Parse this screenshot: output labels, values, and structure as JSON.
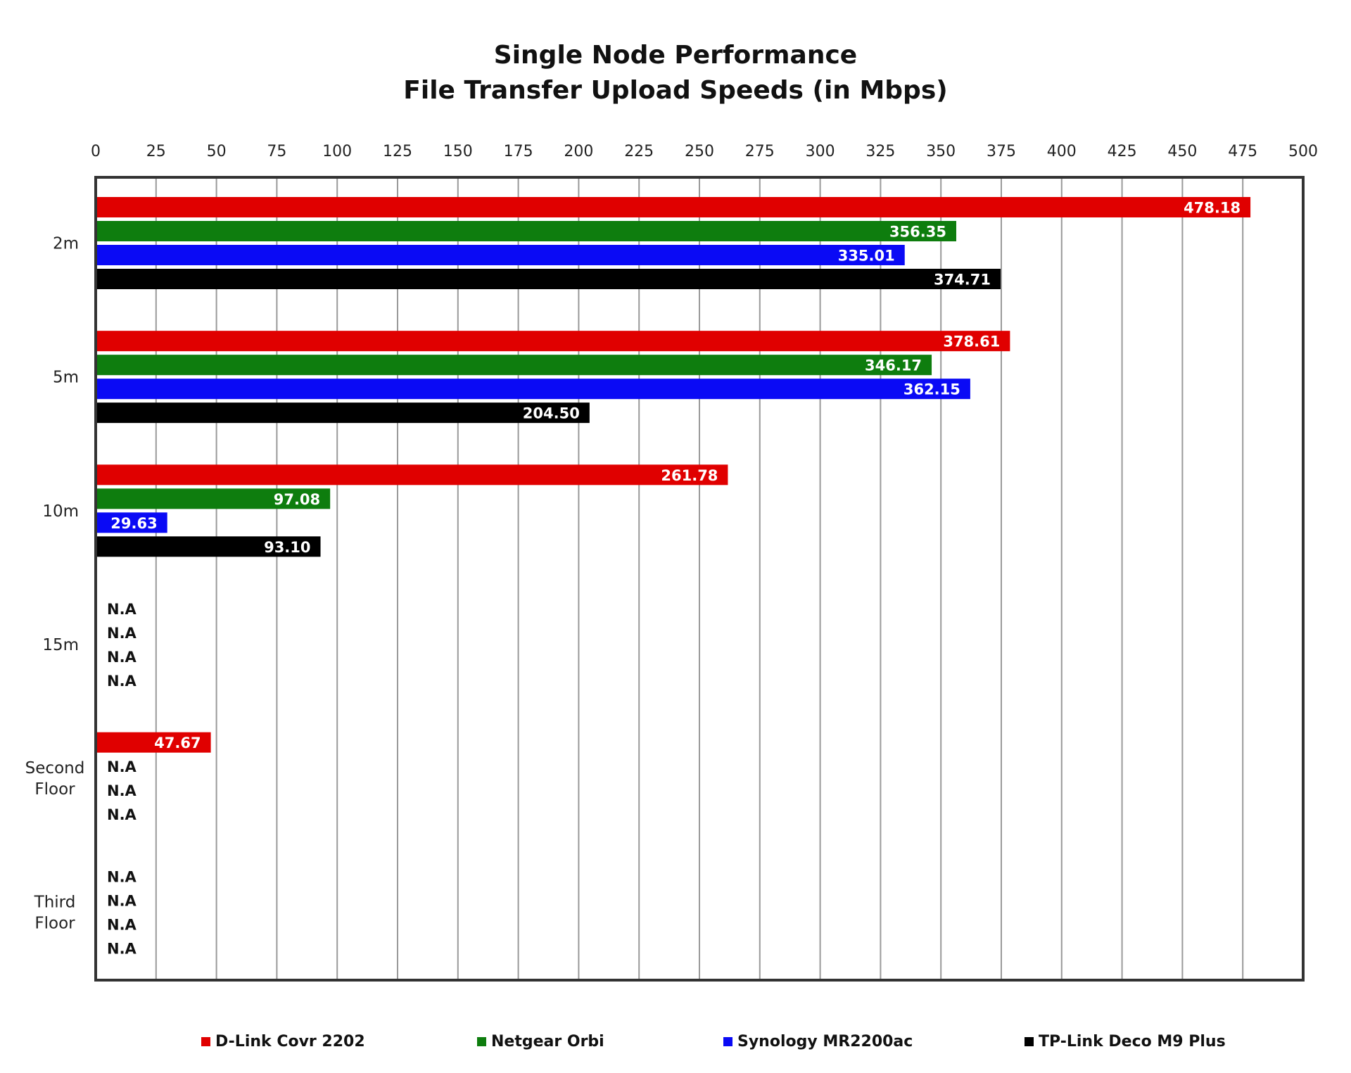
{
  "chart_data": {
    "type": "bar",
    "orientation": "horizontal",
    "title": "Single Node Performance",
    "subtitle": "File Transfer Upload Speeds (in Mbps)",
    "categories": [
      "2m",
      "5m",
      "10m",
      "15m",
      "Second Floor",
      "Third Floor"
    ],
    "xlim": [
      0,
      500
    ],
    "x_ticks": [
      0,
      25,
      50,
      75,
      100,
      125,
      150,
      175,
      200,
      225,
      250,
      275,
      300,
      325,
      350,
      375,
      400,
      425,
      450,
      475,
      500
    ],
    "x_axis_position": "top",
    "grid": "vertical",
    "legend_position": "bottom",
    "na_label": "N.A",
    "series": [
      {
        "name": "D-Link Covr 2202",
        "color": "#e00000",
        "values": [
          478.18,
          378.61,
          261.78,
          null,
          47.67,
          null
        ],
        "labels": [
          "478.18",
          "378.61",
          "261.78",
          "N.A",
          "47.67",
          "N.A"
        ]
      },
      {
        "name": "Netgear Orbi",
        "color": "#0e7d0e",
        "values": [
          356.35,
          346.17,
          97.08,
          null,
          null,
          null
        ],
        "labels": [
          "356.35",
          "346.17",
          "97.08",
          "N.A",
          "N.A",
          "N.A"
        ]
      },
      {
        "name": "Synology MR2200ac",
        "color": "#0a0af5",
        "values": [
          335.01,
          362.15,
          29.63,
          null,
          null,
          null
        ],
        "labels": [
          "335.01",
          "362.15",
          "29.63",
          "N.A",
          "N.A",
          "N.A"
        ]
      },
      {
        "name": "TP-Link Deco M9 Plus",
        "color": "#000000",
        "values": [
          374.71,
          204.5,
          93.1,
          null,
          null,
          null
        ],
        "labels": [
          "374.71",
          "204.50",
          "93.10",
          "N.A",
          "N.A",
          "N.A"
        ]
      }
    ]
  }
}
